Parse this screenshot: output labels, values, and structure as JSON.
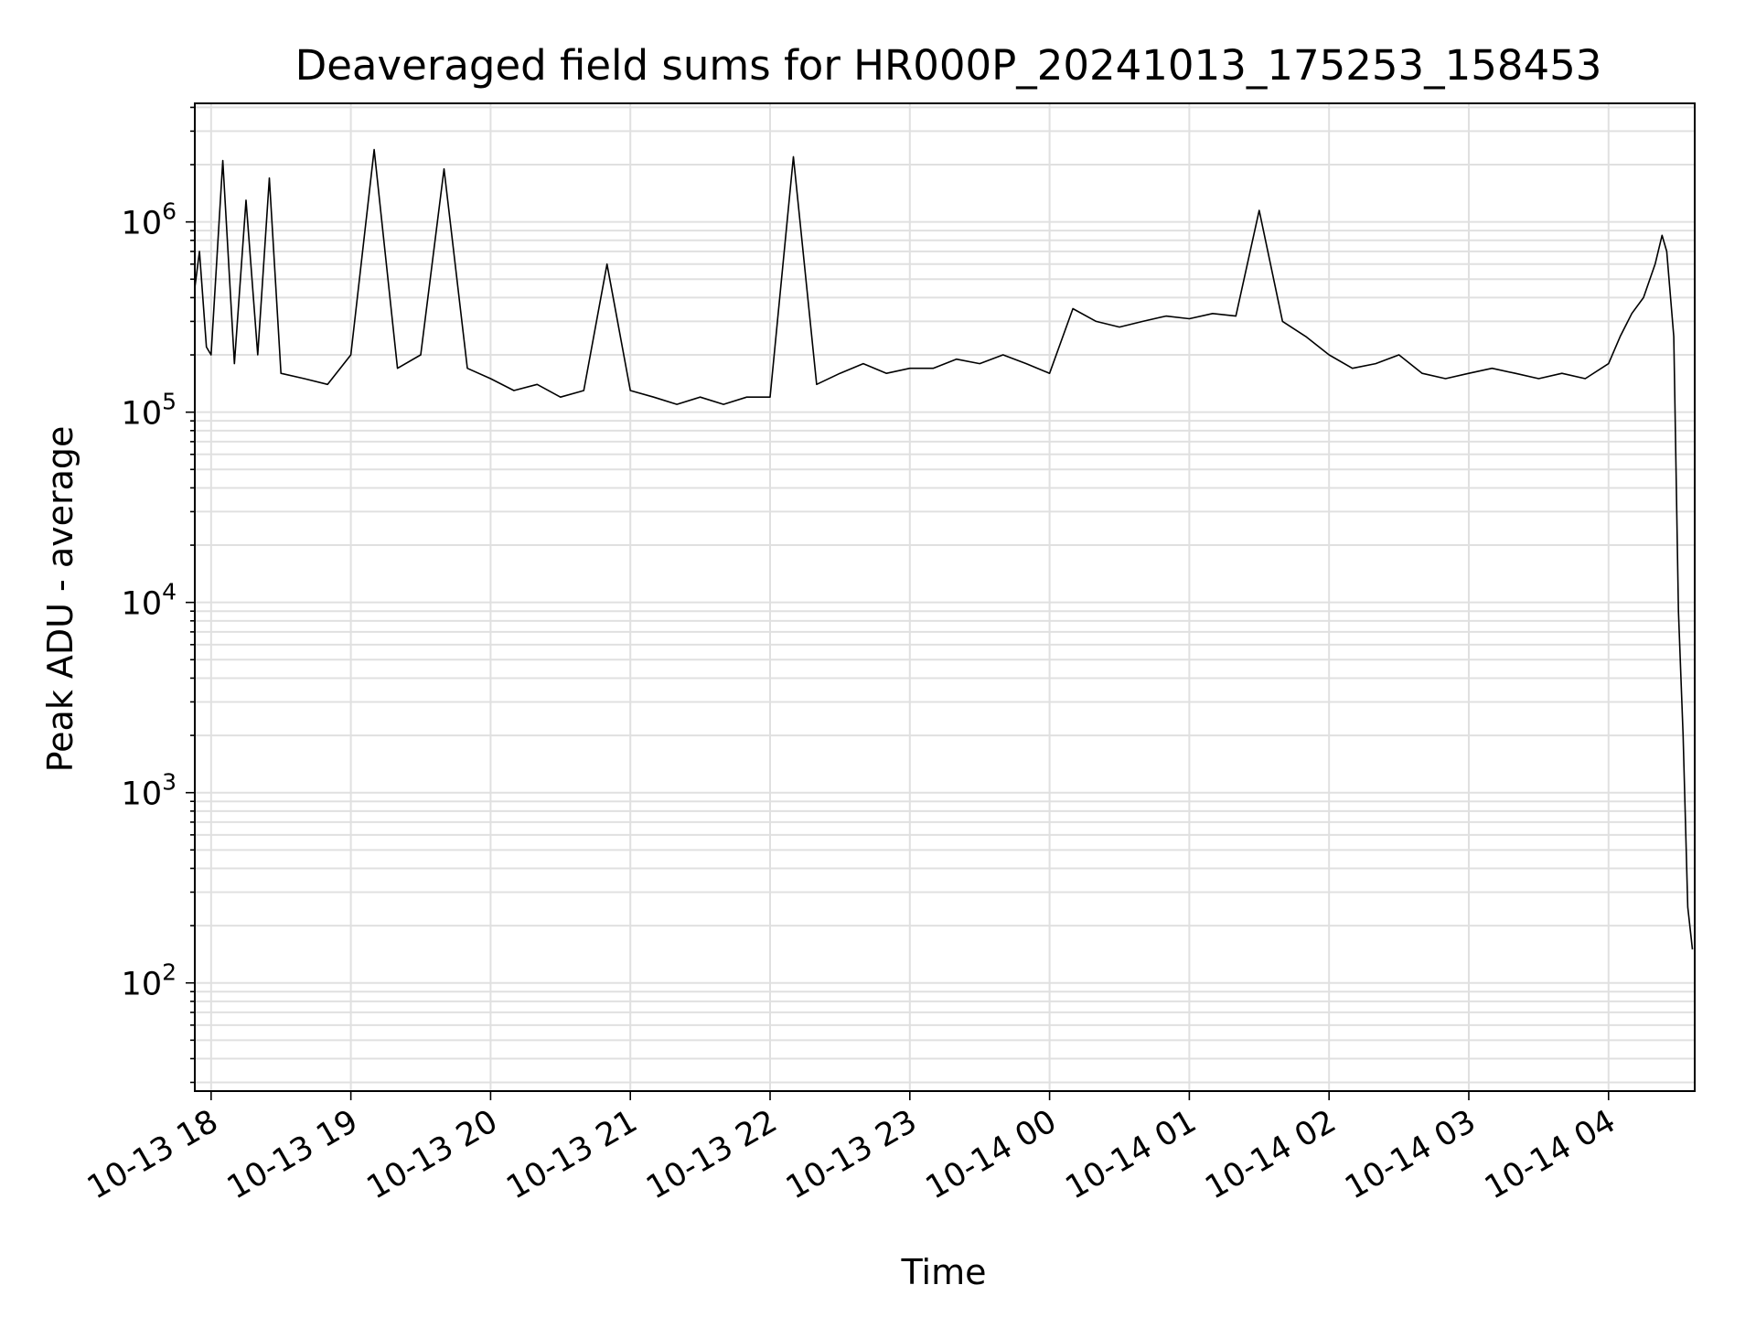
{
  "chart_data": {
    "type": "line",
    "title": "Deaveraged field sums for HR000P_20241013_175253_158453",
    "xlabel": "Time",
    "ylabel": "Peak ADU - average",
    "yscale": "log",
    "ylim": [
      27,
      4200000
    ],
    "xlim": [
      "2024-10-13 17:53",
      "2024-10-14 04:37"
    ],
    "grid": true,
    "line_color": "#000000",
    "grid_color": "#e0e0e0",
    "x_ticks": [
      {
        "t": "2024-10-13 18:00",
        "label": "10-13 18"
      },
      {
        "t": "2024-10-13 19:00",
        "label": "10-13 19"
      },
      {
        "t": "2024-10-13 20:00",
        "label": "10-13 20"
      },
      {
        "t": "2024-10-13 21:00",
        "label": "10-13 21"
      },
      {
        "t": "2024-10-13 22:00",
        "label": "10-13 22"
      },
      {
        "t": "2024-10-13 23:00",
        "label": "10-13 23"
      },
      {
        "t": "2024-10-14 00:00",
        "label": "10-14 00"
      },
      {
        "t": "2024-10-14 01:00",
        "label": "10-14 01"
      },
      {
        "t": "2024-10-14 02:00",
        "label": "10-14 02"
      },
      {
        "t": "2024-10-14 03:00",
        "label": "10-14 03"
      },
      {
        "t": "2024-10-14 04:00",
        "label": "10-14 04"
      }
    ],
    "y_ticks": [
      {
        "value": 100,
        "base": "10",
        "exp": "2"
      },
      {
        "value": 1000,
        "base": "10",
        "exp": "3"
      },
      {
        "value": 10000,
        "base": "10",
        "exp": "4"
      },
      {
        "value": 100000,
        "base": "10",
        "exp": "5"
      },
      {
        "value": 1000000,
        "base": "10",
        "exp": "6"
      }
    ],
    "series": [
      {
        "x": [
          "2024-10-13 17:53",
          "2024-10-13 17:55",
          "2024-10-13 17:58",
          "2024-10-13 18:00",
          "2024-10-13 18:05",
          "2024-10-13 18:10",
          "2024-10-13 18:15",
          "2024-10-13 18:20",
          "2024-10-13 18:25",
          "2024-10-13 18:30",
          "2024-10-13 18:40",
          "2024-10-13 18:50",
          "2024-10-13 19:00",
          "2024-10-13 19:10",
          "2024-10-13 19:20",
          "2024-10-13 19:30",
          "2024-10-13 19:40",
          "2024-10-13 19:50",
          "2024-10-13 20:00",
          "2024-10-13 20:10",
          "2024-10-13 20:20",
          "2024-10-13 20:30",
          "2024-10-13 20:40",
          "2024-10-13 20:50",
          "2024-10-13 21:00",
          "2024-10-13 21:10",
          "2024-10-13 21:20",
          "2024-10-13 21:30",
          "2024-10-13 21:40",
          "2024-10-13 21:50",
          "2024-10-13 22:00",
          "2024-10-13 22:10",
          "2024-10-13 22:20",
          "2024-10-13 22:30",
          "2024-10-13 22:40",
          "2024-10-13 22:50",
          "2024-10-13 23:00",
          "2024-10-13 23:10",
          "2024-10-13 23:20",
          "2024-10-13 23:30",
          "2024-10-13 23:40",
          "2024-10-13 23:50",
          "2024-10-14 00:00",
          "2024-10-14 00:10",
          "2024-10-14 00:20",
          "2024-10-14 00:30",
          "2024-10-14 00:40",
          "2024-10-14 00:50",
          "2024-10-14 01:00",
          "2024-10-14 01:10",
          "2024-10-14 01:20",
          "2024-10-14 01:30",
          "2024-10-14 01:40",
          "2024-10-14 01:50",
          "2024-10-14 02:00",
          "2024-10-14 02:10",
          "2024-10-14 02:20",
          "2024-10-14 02:30",
          "2024-10-14 02:40",
          "2024-10-14 02:50",
          "2024-10-14 03:00",
          "2024-10-14 03:10",
          "2024-10-14 03:20",
          "2024-10-14 03:30",
          "2024-10-14 03:40",
          "2024-10-14 03:50",
          "2024-10-14 04:00",
          "2024-10-14 04:05",
          "2024-10-14 04:10",
          "2024-10-14 04:15",
          "2024-10-14 04:20",
          "2024-10-14 04:23",
          "2024-10-14 04:25",
          "2024-10-14 04:28",
          "2024-10-14 04:30",
          "2024-10-14 04:32",
          "2024-10-14 04:34",
          "2024-10-14 04:36"
        ],
        "y": [
          450000,
          700000,
          220000,
          200000,
          2100000,
          180000,
          1300000,
          200000,
          1700000,
          160000,
          150000,
          140000,
          200000,
          2400000,
          170000,
          200000,
          1900000,
          170000,
          150000,
          130000,
          140000,
          120000,
          130000,
          600000,
          130000,
          120000,
          110000,
          120000,
          110000,
          120000,
          120000,
          2200000,
          140000,
          160000,
          180000,
          160000,
          170000,
          170000,
          190000,
          180000,
          200000,
          180000,
          160000,
          350000,
          300000,
          280000,
          300000,
          320000,
          310000,
          330000,
          320000,
          1150000,
          300000,
          250000,
          200000,
          170000,
          180000,
          200000,
          160000,
          150000,
          160000,
          170000,
          160000,
          150000,
          160000,
          150000,
          180000,
          250000,
          330000,
          400000,
          600000,
          850000,
          700000,
          250000,
          9000,
          2000,
          250,
          150
        ]
      }
    ]
  }
}
